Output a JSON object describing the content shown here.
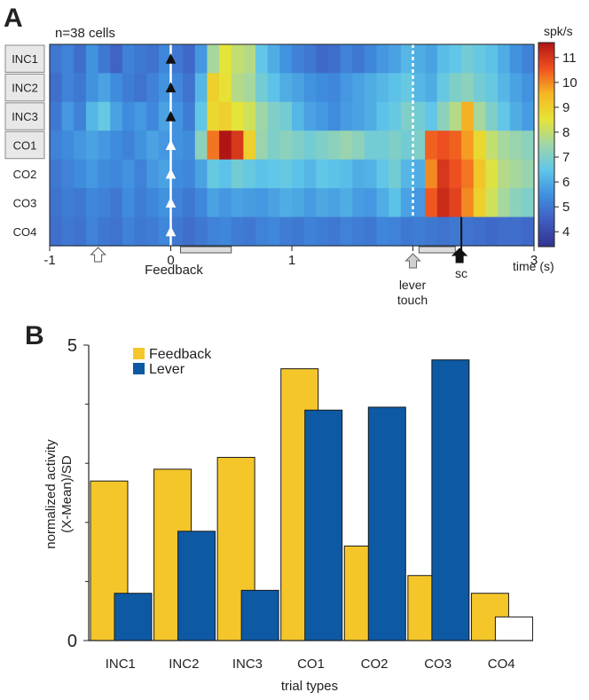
{
  "chart_data": [
    {
      "panel": "A",
      "type": "heatmap",
      "annotation": "n=38 cells",
      "rows": [
        "INC1",
        "INC2",
        "INC3",
        "CO1",
        "CO2",
        "CO3",
        "CO4"
      ],
      "highlighted_rows": [
        "INC1",
        "INC2",
        "INC3",
        "CO1"
      ],
      "x_ticks": [
        -1,
        0,
        1,
        2,
        3
      ],
      "x_tick_labels": [
        "-1",
        "0",
        "1",
        "2",
        "3"
      ],
      "xlim": [
        -1,
        3
      ],
      "xlabel": "time (s)",
      "color_label": "spk/s",
      "color_ticks": [
        4,
        5,
        6,
        7,
        8,
        9,
        10,
        11
      ],
      "color_range": [
        3.4,
        11.6
      ],
      "colors": [
        "#33338f",
        "#3f5bbf",
        "#3f8fdf",
        "#5fc6e9",
        "#9fd6a8",
        "#e6e436",
        "#f6b622",
        "#ef5020",
        "#b01515"
      ],
      "event_feedback": {
        "time": 0,
        "label": "Feedback"
      },
      "event_lever": {
        "time": 2,
        "label_lines": [
          "lever",
          "touch"
        ]
      },
      "event_sc": {
        "time": 2.4,
        "label": "sc"
      },
      "event_cue_time": -0.6,
      "analysis_windows": [
        [
          0.08,
          0.5
        ],
        [
          2.05,
          2.35
        ]
      ],
      "inc_rows_stop_time": 2.4,
      "rates": [
        [
          5.0,
          5.2,
          4.8,
          5.5,
          5.0,
          4.6,
          5.2,
          5.0,
          4.9,
          5.3,
          5.0,
          4.7,
          5.6,
          7.6,
          8.5,
          8.0,
          7.8,
          6.5,
          6.0,
          5.5,
          5.2,
          5.0,
          4.7,
          4.8,
          5.2,
          5.0,
          5.3,
          5.6,
          5.8,
          6.2,
          6.0,
          5.8,
          6.3,
          6.5,
          6.8,
          6.6,
          6.4,
          6.0,
          5.5,
          5.2
        ],
        [
          4.8,
          5.2,
          5.0,
          5.5,
          5.8,
          5.4,
          5.1,
          4.9,
          5.2,
          5.5,
          5.3,
          4.9,
          6.2,
          9.0,
          8.6,
          7.8,
          7.6,
          6.8,
          6.4,
          6.0,
          5.8,
          5.5,
          5.4,
          5.3,
          5.6,
          5.8,
          6.0,
          6.2,
          6.4,
          6.6,
          6.2,
          6.0,
          6.6,
          7.0,
          7.2,
          6.8,
          6.6,
          6.2,
          5.8,
          5.5
        ],
        [
          5.0,
          5.6,
          5.2,
          6.2,
          6.6,
          5.8,
          5.4,
          5.6,
          5.3,
          5.8,
          5.5,
          5.1,
          6.5,
          8.8,
          9.0,
          8.5,
          8.2,
          7.5,
          7.0,
          6.8,
          6.2,
          5.8,
          5.6,
          5.4,
          5.7,
          5.8,
          6.0,
          6.4,
          6.6,
          7.0,
          6.8,
          6.5,
          7.2,
          7.8,
          9.6,
          7.6,
          7.0,
          6.5,
          6.0,
          5.7
        ],
        [
          5.2,
          5.4,
          5.6,
          5.8,
          5.6,
          5.4,
          5.2,
          5.5,
          5.8,
          5.6,
          5.5,
          5.4,
          7.2,
          10.2,
          11.6,
          11.0,
          9.0,
          7.4,
          7.0,
          7.2,
          7.0,
          6.8,
          7.0,
          7.2,
          7.4,
          7.2,
          6.8,
          6.8,
          7.0,
          6.8,
          7.0,
          10.4,
          10.6,
          10.4,
          9.8,
          8.8,
          8.0,
          7.6,
          7.4,
          7.2
        ],
        [
          5.0,
          5.2,
          5.4,
          5.6,
          5.4,
          5.3,
          5.5,
          5.2,
          5.6,
          5.8,
          5.4,
          5.3,
          5.8,
          6.6,
          6.4,
          6.8,
          6.6,
          6.4,
          6.5,
          6.6,
          6.4,
          6.2,
          6.5,
          6.4,
          6.3,
          6.0,
          6.1,
          6.5,
          6.8,
          6.2,
          6.0,
          10.0,
          11.0,
          10.6,
          10.2,
          9.2,
          8.4,
          7.8,
          7.6,
          7.4
        ],
        [
          4.9,
          5.1,
          5.0,
          5.3,
          5.2,
          5.0,
          5.4,
          5.1,
          5.3,
          5.5,
          5.2,
          5.0,
          5.3,
          5.8,
          5.6,
          5.8,
          5.7,
          5.6,
          5.8,
          6.0,
          5.9,
          5.7,
          5.9,
          5.8,
          6.0,
          5.7,
          5.6,
          6.0,
          6.4,
          5.8,
          5.6,
          10.5,
          11.2,
          10.8,
          10.0,
          9.0,
          8.2,
          7.6,
          7.2,
          7.0
        ],
        [
          4.8,
          5.0,
          4.9,
          5.2,
          5.0,
          4.9,
          5.2,
          5.0,
          5.1,
          5.3,
          5.0,
          4.8,
          5.0,
          5.2,
          5.3,
          5.1,
          5.0,
          5.2,
          5.3,
          5.1,
          5.0,
          5.2,
          5.1,
          5.0,
          5.2,
          5.1,
          5.0,
          5.3,
          5.2,
          5.0,
          5.1,
          5.0,
          4.9,
          5.0,
          4.9,
          4.8,
          4.7,
          4.8,
          4.8,
          4.7
        ]
      ]
    },
    {
      "panel": "B",
      "type": "bar",
      "categories": [
        "INC1",
        "INC2",
        "INC3",
        "CO1",
        "CO2",
        "CO3",
        "CO4"
      ],
      "series": [
        {
          "name": "Feedback",
          "color": "#f5c62a",
          "values": [
            2.7,
            2.9,
            3.1,
            4.6,
            1.6,
            1.1,
            0.8
          ]
        },
        {
          "name": "Lever",
          "color": "#0d59a3",
          "values": [
            0.8,
            1.85,
            0.85,
            3.9,
            3.95,
            4.75,
            0.4
          ]
        }
      ],
      "open_bars": [
        {
          "series": "Lever",
          "category": "CO4"
        }
      ],
      "xlabel": "trial types",
      "ylabel_lines": [
        "normalized activity",
        "(X-Mean)/SD"
      ],
      "ylim": [
        0,
        5
      ],
      "y_tick_labels": [
        {
          "value": 0,
          "label": "0"
        },
        {
          "value": 5,
          "label": "5"
        }
      ],
      "y_minor_ticks": [
        1,
        2,
        3,
        4
      ],
      "legend_position": "top-left"
    }
  ],
  "panel_labels": {
    "a": "A",
    "b": "B"
  }
}
